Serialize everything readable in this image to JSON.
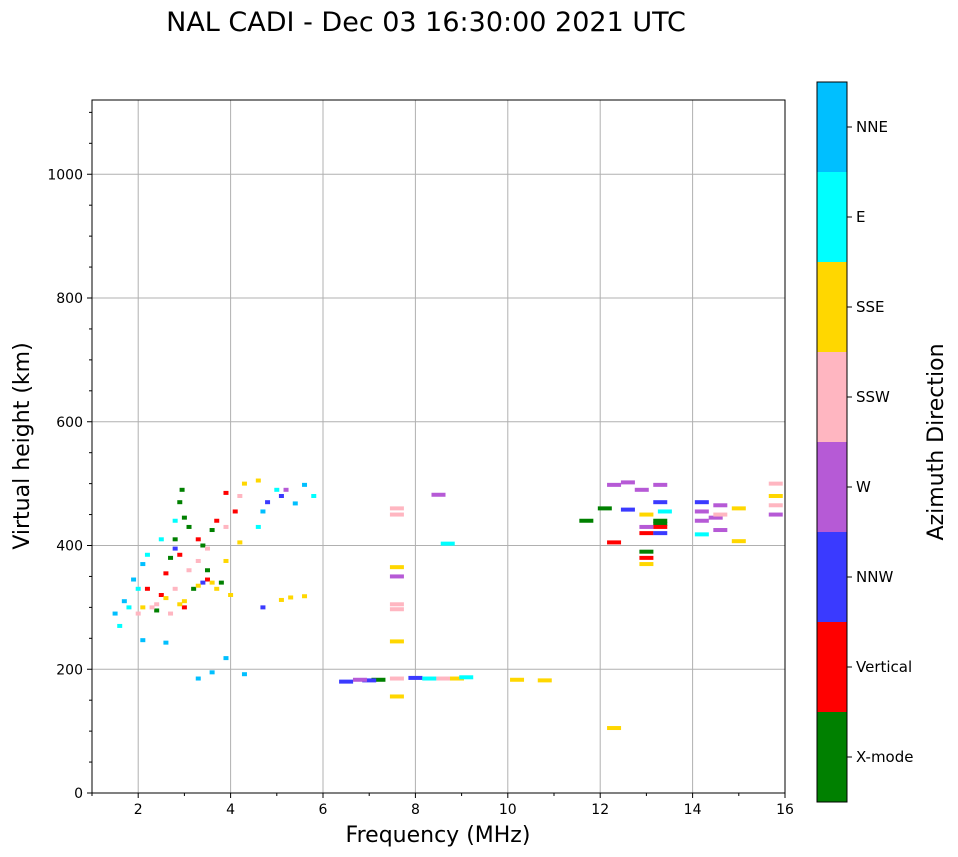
{
  "chart_data": {
    "type": "scatter",
    "title": "NAL CADI - Dec 03 16:30:00 2021 UTC",
    "xlabel": "Frequency (MHz)",
    "ylabel": "Virtual height (km)",
    "xlim": [
      1,
      16
    ],
    "ylim": [
      0,
      1120
    ],
    "xticks": [
      2,
      4,
      6,
      8,
      10,
      12,
      14,
      16
    ],
    "yticks": [
      0,
      200,
      400,
      600,
      800,
      1000
    ],
    "grid": true,
    "colorbar": {
      "label": "Azimuth Direction",
      "categories": [
        {
          "name": "X-mode",
          "color": "#008000"
        },
        {
          "name": "Vertical",
          "color": "#ff0000"
        },
        {
          "name": "NNW",
          "color": "#3a3aff"
        },
        {
          "name": "W",
          "color": "#b65ad6"
        },
        {
          "name": "SSW",
          "color": "#ffb6c1"
        },
        {
          "name": "SSE",
          "color": "#ffd700"
        },
        {
          "name": "E",
          "color": "#00ffff"
        },
        {
          "name": "NNE",
          "color": "#00bfff"
        }
      ]
    },
    "series": [
      {
        "name": "X-mode",
        "points": [
          [
            2.8,
            410
          ],
          [
            2.9,
            470
          ],
          [
            2.95,
            490
          ],
          [
            3.0,
            445
          ],
          [
            2.7,
            380
          ],
          [
            3.1,
            430
          ],
          [
            3.4,
            400
          ],
          [
            3.6,
            425
          ],
          [
            3.5,
            360
          ],
          [
            11.7,
            440
          ],
          [
            12.1,
            460
          ],
          [
            13.0,
            390
          ],
          [
            13.3,
            440
          ],
          [
            13.3,
            435
          ],
          [
            7.2,
            183
          ],
          [
            2.4,
            295
          ],
          [
            3.2,
            330
          ],
          [
            3.8,
            340
          ]
        ]
      },
      {
        "name": "Vertical",
        "points": [
          [
            2.2,
            330
          ],
          [
            2.6,
            355
          ],
          [
            2.9,
            385
          ],
          [
            3.3,
            410
          ],
          [
            3.7,
            440
          ],
          [
            4.1,
            455
          ],
          [
            12.3,
            405
          ],
          [
            13.0,
            420
          ],
          [
            13.0,
            380
          ],
          [
            13.3,
            430
          ],
          [
            2.5,
            320
          ],
          [
            3.0,
            300
          ],
          [
            3.5,
            345
          ],
          [
            3.9,
            485
          ]
        ]
      },
      {
        "name": "NNW",
        "points": [
          [
            6.5,
            180
          ],
          [
            7.0,
            182
          ],
          [
            8.0,
            186
          ],
          [
            4.7,
            300
          ],
          [
            13.3,
            470
          ],
          [
            14.2,
            470
          ],
          [
            13.3,
            420
          ],
          [
            12.6,
            458
          ],
          [
            4.8,
            470
          ],
          [
            5.1,
            480
          ],
          [
            2.8,
            395
          ],
          [
            3.4,
            340
          ]
        ]
      },
      {
        "name": "W",
        "points": [
          [
            12.3,
            498
          ],
          [
            12.6,
            502
          ],
          [
            12.9,
            490
          ],
          [
            13.3,
            498
          ],
          [
            14.6,
            465
          ],
          [
            14.5,
            445
          ],
          [
            14.6,
            425
          ],
          [
            14.2,
            455
          ],
          [
            14.2,
            440
          ],
          [
            13.0,
            430
          ],
          [
            8.5,
            482
          ],
          [
            7.6,
            350
          ],
          [
            6.8,
            183
          ],
          [
            15.8,
            450
          ],
          [
            5.2,
            490
          ]
        ]
      },
      {
        "name": "SSW",
        "points": [
          [
            2.0,
            290
          ],
          [
            2.4,
            305
          ],
          [
            2.8,
            330
          ],
          [
            3.1,
            360
          ],
          [
            3.5,
            395
          ],
          [
            3.9,
            430
          ],
          [
            4.2,
            480
          ],
          [
            7.6,
            460
          ],
          [
            7.6,
            450
          ],
          [
            7.6,
            305
          ],
          [
            7.6,
            297
          ],
          [
            7.6,
            185
          ],
          [
            8.6,
            185
          ],
          [
            15.8,
            500
          ],
          [
            15.8,
            465
          ],
          [
            14.6,
            450
          ],
          [
            2.3,
            300
          ],
          [
            2.7,
            290
          ],
          [
            3.3,
            375
          ]
        ]
      },
      {
        "name": "SSE",
        "points": [
          [
            2.1,
            300
          ],
          [
            2.6,
            315
          ],
          [
            3.0,
            310
          ],
          [
            3.3,
            335
          ],
          [
            3.6,
            340
          ],
          [
            3.9,
            375
          ],
          [
            4.2,
            405
          ],
          [
            4.3,
            500
          ],
          [
            4.6,
            505
          ],
          [
            5.1,
            312
          ],
          [
            5.3,
            316
          ],
          [
            5.6,
            318
          ],
          [
            7.6,
            365
          ],
          [
            7.6,
            245
          ],
          [
            7.6,
            156
          ],
          [
            8.9,
            185
          ],
          [
            10.2,
            183
          ],
          [
            10.8,
            182
          ],
          [
            12.3,
            105
          ],
          [
            13.0,
            370
          ],
          [
            13.0,
            450
          ],
          [
            15.0,
            407
          ],
          [
            15.0,
            460
          ],
          [
            15.8,
            480
          ],
          [
            4.0,
            320
          ],
          [
            3.7,
            330
          ],
          [
            2.9,
            305
          ]
        ]
      },
      {
        "name": "E",
        "points": [
          [
            1.6,
            270
          ],
          [
            1.8,
            300
          ],
          [
            2.0,
            330
          ],
          [
            2.2,
            385
          ],
          [
            2.5,
            410
          ],
          [
            2.8,
            440
          ],
          [
            4.6,
            430
          ],
          [
            8.7,
            403
          ],
          [
            9.1,
            187
          ],
          [
            8.3,
            185
          ],
          [
            14.2,
            418
          ],
          [
            13.4,
            455
          ],
          [
            5.0,
            490
          ],
          [
            5.8,
            480
          ]
        ]
      },
      {
        "name": "NNE",
        "points": [
          [
            1.5,
            290
          ],
          [
            1.7,
            310
          ],
          [
            1.9,
            345
          ],
          [
            2.1,
            370
          ],
          [
            2.1,
            247
          ],
          [
            2.6,
            243
          ],
          [
            3.3,
            185
          ],
          [
            3.6,
            195
          ],
          [
            3.9,
            218
          ],
          [
            4.3,
            192
          ],
          [
            4.7,
            455
          ],
          [
            5.4,
            468
          ],
          [
            5.6,
            498
          ]
        ]
      }
    ]
  }
}
